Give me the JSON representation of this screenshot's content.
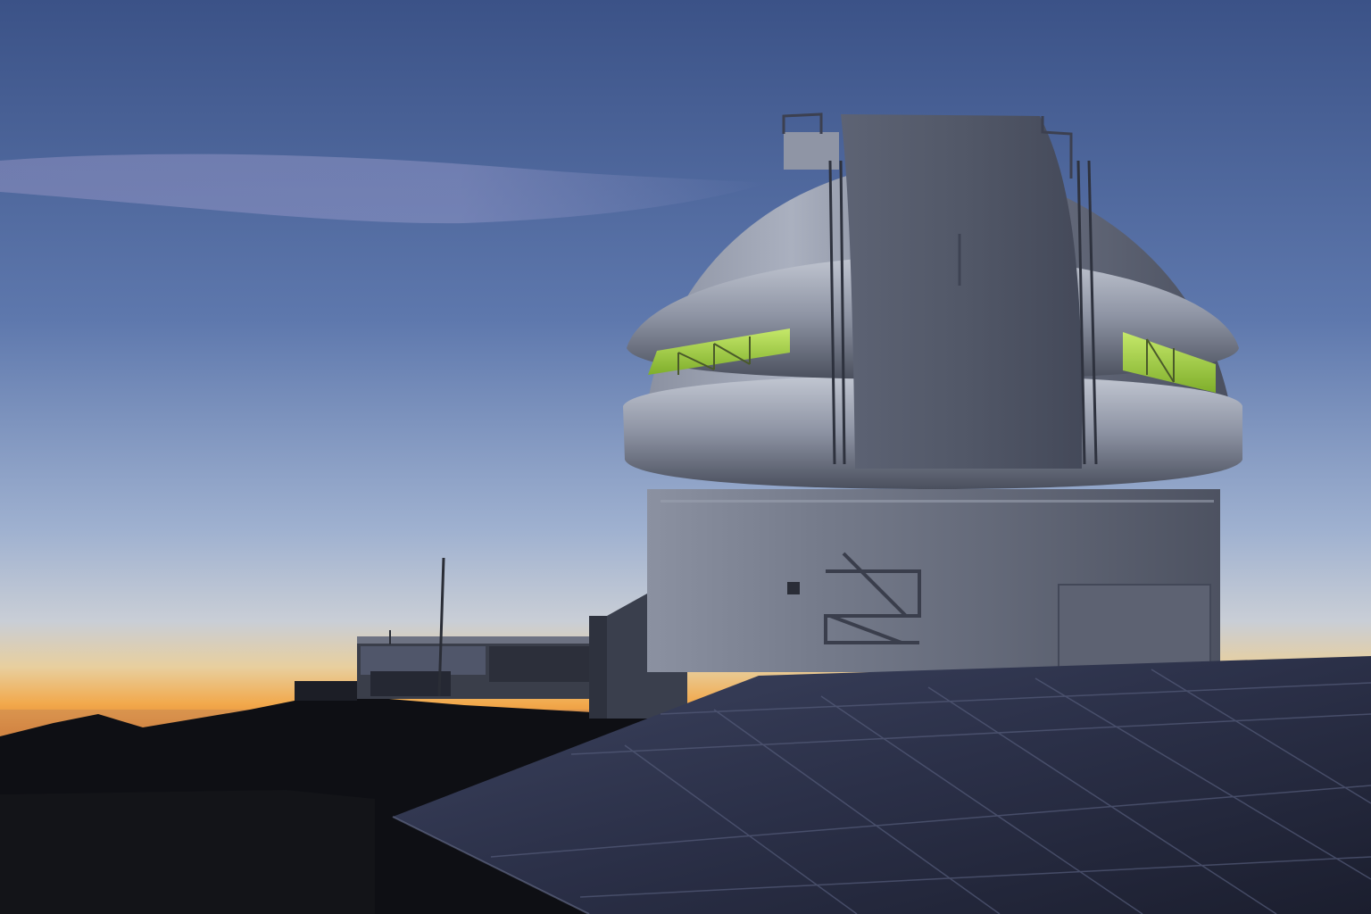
{
  "scene": {
    "subject": "observatory-dome-at-dusk",
    "palette": {
      "sky_top": "#3e578e",
      "sky_mid": "#6f8bbd",
      "sky_low": "#c2c8d4",
      "horizon_glow": "#f0a64a",
      "horizon_deep": "#e07a2a",
      "dome_light": "#b9bfcd",
      "dome_mid": "#7d8496",
      "dome_dark": "#3a3e4c",
      "window_glow": "#9ed23a",
      "ground": "#0d0e12",
      "solar_panel": "#2a2f44"
    },
    "elements": [
      "sky",
      "wispy-cloud",
      "horizon-glow",
      "mountain-ridge",
      "support-building",
      "antenna-mast",
      "telescope-dome",
      "dome-shutter",
      "lit-window-left",
      "lit-window-right",
      "exterior-stairs",
      "solar-panel-array"
    ]
  }
}
